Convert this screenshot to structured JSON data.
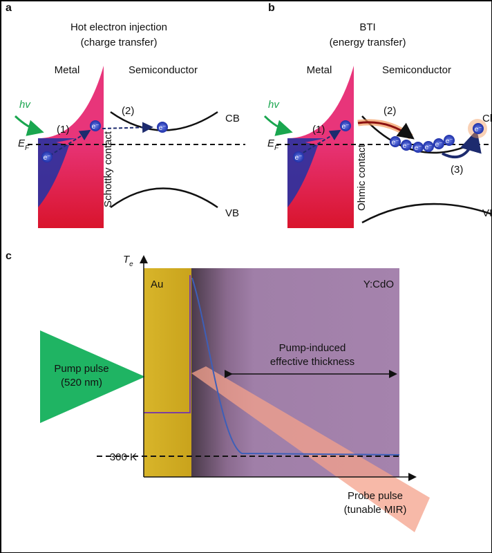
{
  "panel_a": {
    "label": "a",
    "title": "Hot electron injection",
    "subtitle": "(charge transfer)",
    "metal": "Metal",
    "semiconductor": "Semiconductor",
    "photon": "hv",
    "steps": [
      "(1)",
      "(2)"
    ],
    "cb": "CB",
    "vb": "VB",
    "fermi": {
      "symbol": "E",
      "subscript": "F"
    },
    "electron": "e⁻",
    "contact": "Schottky contact"
  },
  "panel_b": {
    "label": "b",
    "title": "BTI",
    "subtitle": "(energy transfer)",
    "metal": "Metal",
    "semiconductor": "Semiconductor",
    "photon": "hv",
    "steps": [
      "(1)",
      "(2)",
      "(3)"
    ],
    "cb": "Cl",
    "vb": "VI",
    "fermi": {
      "symbol": "E",
      "subscript": "F"
    },
    "electron": "e⁻",
    "contact": "Ohmic contact"
  },
  "panel_c": {
    "label": "c",
    "y_axis": {
      "symbol": "T",
      "subscript": "e"
    },
    "au": "Au",
    "cdo": "Y:CdO",
    "pump": [
      "Pump pulse",
      "(520 nm)"
    ],
    "thickness": [
      "Pump-induced",
      "effective thickness"
    ],
    "room_temperature": "300 K",
    "probe": [
      "Probe pulse",
      "(tunable MIR)"
    ]
  }
}
